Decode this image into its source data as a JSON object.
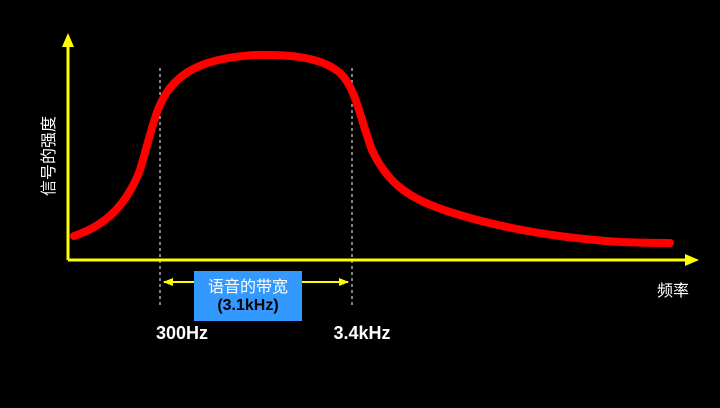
{
  "colors": {
    "background": "#000000",
    "axis": "#ffff00",
    "curve": "#ff0000",
    "guide": "#ffffff",
    "bandwidth_box": "#3399ff",
    "text": "#ffffff"
  },
  "y_axis_label": "信号的强度",
  "x_axis_label": "频率",
  "bandwidth": {
    "line1": "语音的带宽",
    "line2": "(3.1kHz)"
  },
  "cutoffs": {
    "low": "300Hz",
    "high": "3.4kHz"
  }
}
